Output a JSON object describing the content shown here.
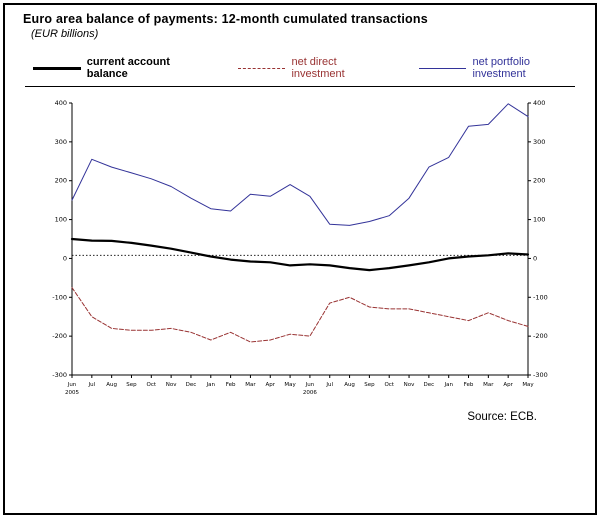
{
  "header": {
    "title": "Euro area balance of payments: 12-month cumulated transactions",
    "subtitle": "(EUR billions)"
  },
  "legend": [
    {
      "label": "current account balance",
      "color": "#000000",
      "style": "solid-thick"
    },
    {
      "label": "net direct investment",
      "color": "#993333",
      "style": "dashed"
    },
    {
      "label": "net portfolio investment",
      "color": "#333399",
      "style": "solid-thin"
    }
  ],
  "footer": {
    "source": "Source: ECB."
  },
  "chart_data": {
    "type": "line",
    "categories": [
      "Jun",
      "Jul",
      "Aug",
      "Sep",
      "Oct",
      "Nov",
      "Dec",
      "Jan",
      "Feb",
      "Mar",
      "Apr",
      "May",
      "Jun",
      "Jul",
      "Aug",
      "Sep",
      "Oct",
      "Nov",
      "Dec",
      "Jan",
      "Feb",
      "Mar",
      "Apr",
      "May"
    ],
    "year_labels": [
      {
        "index": 0,
        "label": "2005"
      },
      {
        "index": 12,
        "label": "2006"
      }
    ],
    "series": [
      {
        "name": "current account balance",
        "color": "#000000",
        "dash": null,
        "width": 2.2,
        "values": [
          50,
          46,
          45,
          40,
          33,
          25,
          15,
          5,
          -3,
          -8,
          -10,
          -18,
          -15,
          -18,
          -25,
          -30,
          -25,
          -18,
          -10,
          0,
          5,
          8,
          13,
          10
        ]
      },
      {
        "name": "net direct investment",
        "color": "#993333",
        "dash": "4,2",
        "width": 1,
        "values": [
          -75,
          -150,
          -180,
          -185,
          -185,
          -180,
          -190,
          -210,
          -190,
          -215,
          -210,
          -195,
          -200,
          -115,
          -100,
          -125,
          -130,
          -130,
          -140,
          -150,
          -160,
          -140,
          -160,
          -175
        ]
      },
      {
        "name": "net portfolio investment",
        "color": "#333399",
        "dash": null,
        "width": 1,
        "values": [
          150,
          255,
          235,
          220,
          205,
          185,
          155,
          128,
          122,
          165,
          160,
          190,
          160,
          88,
          85,
          95,
          110,
          155,
          235,
          260,
          340,
          345,
          398,
          365
        ]
      }
    ],
    "ylim": [
      -300,
      400
    ],
    "ytick_step": 100,
    "reference_line": 8,
    "grid": false,
    "legend_position": "top",
    "title": "Euro area balance of payments: 12-month cumulated transactions",
    "ylabel": "EUR billions"
  }
}
